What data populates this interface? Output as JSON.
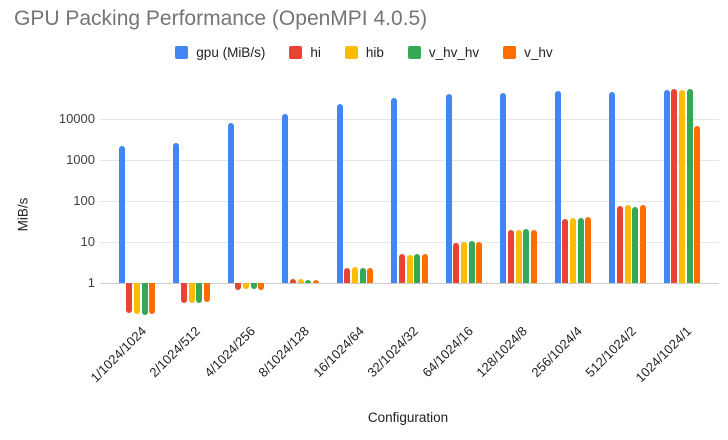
{
  "title": "GPU Packing Performance (OpenMPI 4.0.5)",
  "chart_data": {
    "type": "bar",
    "title": "GPU Packing Performance (OpenMPI 4.0.5)",
    "xlabel": "Configuration",
    "ylabel": "MiB/s",
    "y_scale": "log",
    "y_ticks": [
      1,
      10,
      100,
      1000,
      10000
    ],
    "ylim": [
      0.15,
      100000
    ],
    "grid": true,
    "legend_position": "top",
    "categories": [
      "1/1024/1024",
      "2/1024/512",
      "4/1024/256",
      "8/1024/128",
      "16/1024/64",
      "32/1024/32",
      "64/1024/16",
      "128/1024/8",
      "256/1024/4",
      "512/1024/2",
      "1024/1024/1"
    ],
    "series": [
      {
        "name": "gpu (MiB/s)",
        "color": "#4285F4",
        "values": [
          2200,
          2600,
          8000,
          13000,
          23000,
          33000,
          41000,
          44000,
          47000,
          45000,
          52000
        ]
      },
      {
        "name": "hi",
        "color": "#EA4335",
        "values": [
          0.19,
          0.33,
          0.68,
          1.25,
          2.3,
          5.0,
          9.5,
          20,
          37,
          75,
          54000
        ]
      },
      {
        "name": "hib",
        "color": "#FBBC04",
        "values": [
          0.18,
          0.33,
          0.7,
          1.25,
          2.4,
          4.8,
          10,
          20,
          38,
          82,
          51000
        ]
      },
      {
        "name": "v_hv_hv",
        "color": "#34A853",
        "values": [
          0.17,
          0.33,
          0.72,
          1.2,
          2.3,
          5.0,
          10.5,
          21,
          38,
          72,
          54000
        ]
      },
      {
        "name": "v_hv",
        "color": "#FF6D01",
        "values": [
          0.18,
          0.34,
          0.68,
          1.2,
          2.35,
          5.0,
          10,
          20,
          40,
          79,
          6700
        ]
      }
    ]
  }
}
